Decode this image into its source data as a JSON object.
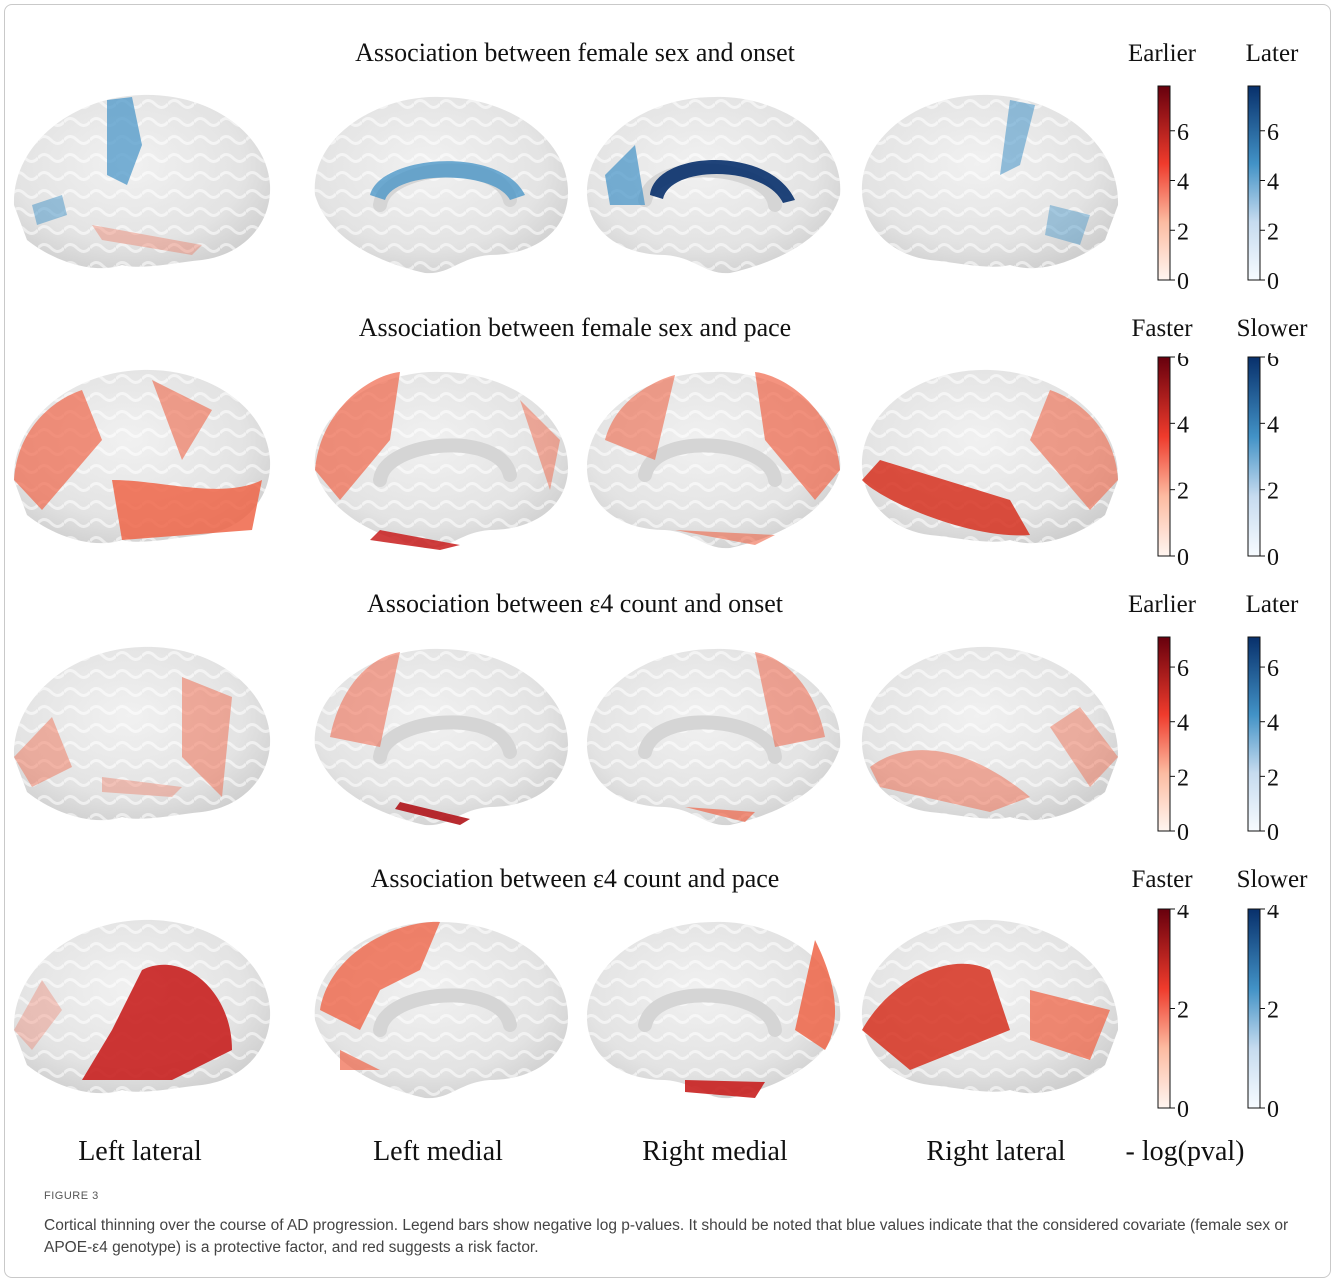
{
  "figure": {
    "rows": [
      {
        "title": "Association between female sex and onset",
        "legend_left": "Earlier",
        "legend_right": "Later",
        "max": 7.8,
        "ticks": [
          0,
          2,
          4,
          6
        ]
      },
      {
        "title": "Association between female sex and pace",
        "legend_left": "Faster",
        "legend_right": "Slower",
        "max": 6,
        "ticks": [
          0,
          2,
          4,
          6
        ]
      },
      {
        "title": "Association between ε4 count and onset",
        "legend_left": "Earlier",
        "legend_right": "Later",
        "max": 7.1,
        "ticks": [
          0,
          2,
          4,
          6
        ]
      },
      {
        "title": "Association between ε4 count and pace",
        "legend_left": "Faster",
        "legend_right": "Slower",
        "max": 4,
        "ticks": [
          0,
          2,
          4
        ]
      }
    ],
    "column_labels": [
      "Left lateral",
      "Left medial",
      "Right medial",
      "Right lateral"
    ],
    "legend_axis_label": "- log(pval)",
    "figure_label": "FIGURE 3",
    "caption": "Cortical thinning over the course of AD progression. Legend bars show negative log p-values. It should be noted that blue values indicate that the considered covariate (female sex or APOE-ε4 genotype) is a protective factor, and red suggests a risk factor.",
    "colors": {
      "red_dark": "#67000d",
      "red_mid": "#ef6548",
      "red_light": "#fee0d2",
      "blue_dark": "#08306b",
      "blue_mid": "#4292c6",
      "blue_light": "#deebf7",
      "cortex": "#e6e6e6"
    }
  }
}
